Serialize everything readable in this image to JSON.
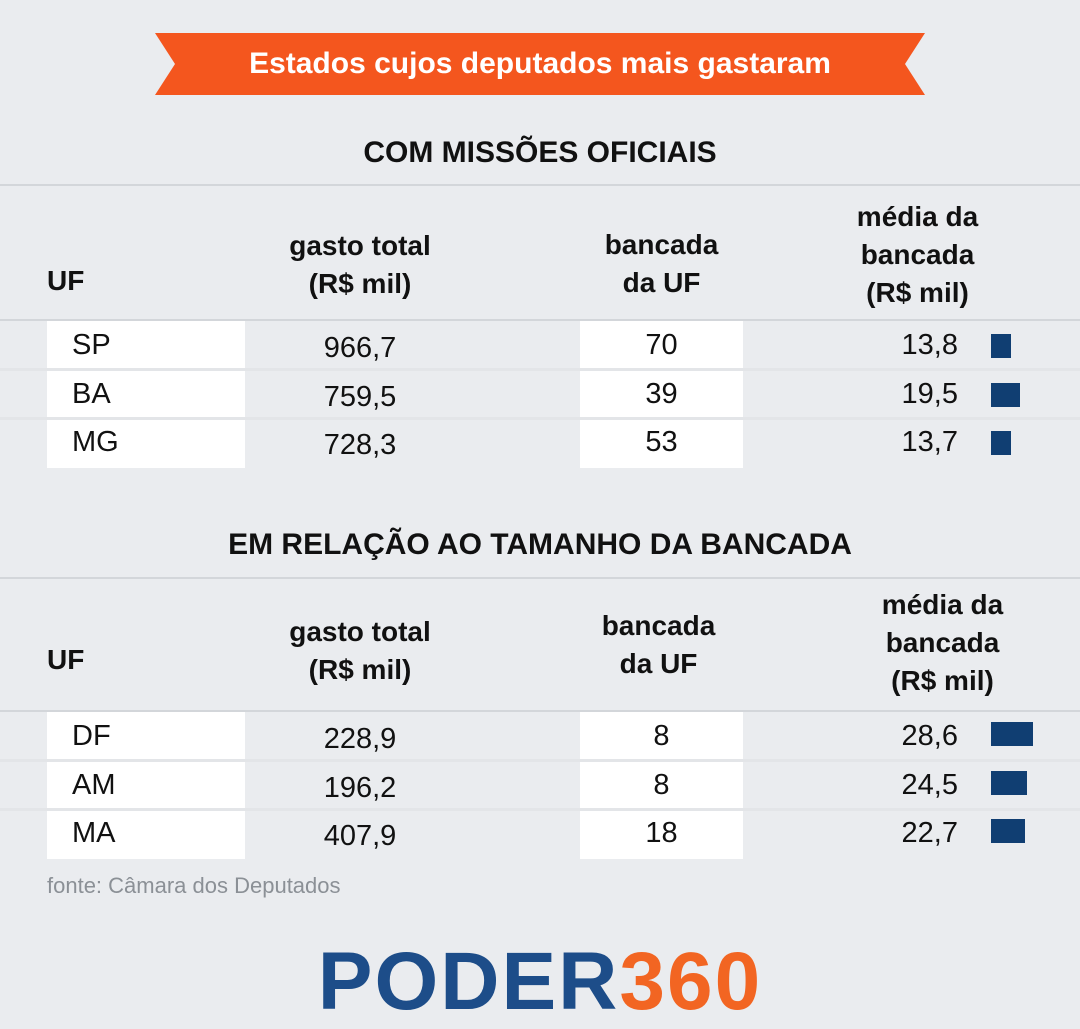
{
  "banner": {
    "title": "Estados cujos deputados mais gastaram"
  },
  "colors": {
    "banner": "#f4561e",
    "bar": "#103e72",
    "logo_blue": "#1d4d89",
    "logo_orange": "#f26522",
    "background": "#eaecef"
  },
  "chart_data": [
    {
      "type": "table",
      "title": "COM MISSÕES OFICIAIS",
      "headers": {
        "uf": "UF",
        "gasto_l1": "gasto total",
        "gasto_l2": "(R$ mil)",
        "banc_l1": "bancada",
        "banc_l2": "da UF",
        "media_l1": "média da",
        "media_l2": "bancada",
        "media_l3": "(R$ mil)"
      },
      "rows": [
        {
          "uf": "SP",
          "gasto": "966,7",
          "bancada": "70",
          "media": "13,8",
          "media_value": 13.8
        },
        {
          "uf": "BA",
          "gasto": "759,5",
          "bancada": "39",
          "media": "19,5",
          "media_value": 19.5
        },
        {
          "uf": "MG",
          "gasto": "728,3",
          "bancada": "53",
          "media": "13,7",
          "media_value": 13.7
        }
      ]
    },
    {
      "type": "table",
      "title": "EM RELAÇÃO AO TAMANHO DA BANCADA",
      "headers": {
        "uf": "UF",
        "gasto_l1": "gasto total",
        "gasto_l2": "(R$ mil)",
        "banc_l1": "bancada",
        "banc_l2": "da UF",
        "media_l1": "média da",
        "media_l2": "bancada",
        "media_l3": "(R$ mil)"
      },
      "rows": [
        {
          "uf": "DF",
          "gasto": "228,9",
          "bancada": "8",
          "media": "28,6",
          "media_value": 28.6
        },
        {
          "uf": "AM",
          "gasto": "196,2",
          "bancada": "8",
          "media": "24,5",
          "media_value": 24.5
        },
        {
          "uf": "MA",
          "gasto": "407,9",
          "bancada": "18",
          "media": "22,7",
          "media_value": 22.7
        }
      ]
    }
  ],
  "source": "fonte: Câmara dos Deputados",
  "logo": {
    "part1": "PODER",
    "part2": "360"
  }
}
